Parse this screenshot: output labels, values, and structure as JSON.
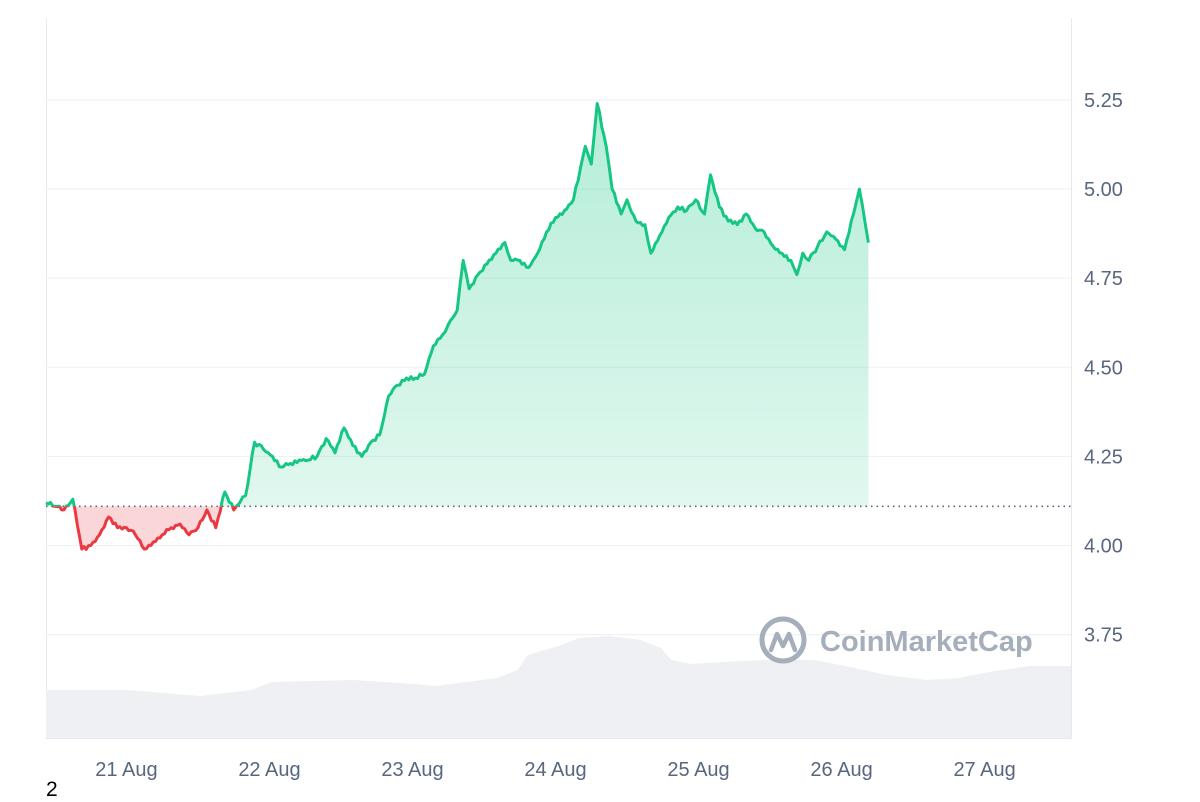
{
  "chart_data": {
    "type": "line",
    "title": "",
    "xlabel": "",
    "ylabel": "",
    "ylim": [
      3.46,
      5.48
    ],
    "y_ticks": [
      "3.75",
      "4.00",
      "4.25",
      "4.50",
      "4.75",
      "5.00",
      "5.25"
    ],
    "x_range": [
      "2024-08-20 10:30",
      "2024-08-27 14:30"
    ],
    "x_ticks": [
      {
        "label": "21 Aug",
        "time": "2024-08-21 00:00"
      },
      {
        "label": "22 Aug",
        "time": "2024-08-22 00:00"
      },
      {
        "label": "23 Aug",
        "time": "2024-08-23 00:00"
      },
      {
        "label": "24 Aug",
        "time": "2024-08-24 00:00"
      },
      {
        "label": "25 Aug",
        "time": "2024-08-25 00:00"
      },
      {
        "label": "26 Aug",
        "time": "2024-08-26 00:00"
      },
      {
        "label": "27 Aug",
        "time": "2024-08-27 00:00"
      }
    ],
    "baseline": 4.11,
    "grid": true,
    "colors": {
      "up": "#16c784",
      "down": "#ea3943",
      "grid": "#eff2f5",
      "volume": "#eef0f3",
      "baseline": "#58667e"
    },
    "series": [
      {
        "points": [
          [
            "2024-08-20 10:30",
            4.12
          ],
          [
            "2024-08-20 12:00",
            4.11
          ],
          [
            "2024-08-20 13:30",
            4.1
          ],
          [
            "2024-08-20 15:00",
            4.13
          ],
          [
            "2024-08-20 16:30",
            3.99
          ],
          [
            "2024-08-20 18:00",
            4.0
          ],
          [
            "2024-08-20 19:30",
            4.03
          ],
          [
            "2024-08-20 21:00",
            4.08
          ],
          [
            "2024-08-20 22:30",
            4.05
          ],
          [
            "2024-08-21 00:00",
            4.05
          ],
          [
            "2024-08-21 01:30",
            4.03
          ],
          [
            "2024-08-21 03:00",
            3.99
          ],
          [
            "2024-08-21 04:30",
            4.01
          ],
          [
            "2024-08-21 06:00",
            4.03
          ],
          [
            "2024-08-21 07:30",
            4.05
          ],
          [
            "2024-08-21 09:00",
            4.06
          ],
          [
            "2024-08-21 10:30",
            4.03
          ],
          [
            "2024-08-21 12:00",
            4.05
          ],
          [
            "2024-08-21 13:30",
            4.1
          ],
          [
            "2024-08-21 15:00",
            4.05
          ],
          [
            "2024-08-21 16:30",
            4.15
          ],
          [
            "2024-08-21 18:00",
            4.1
          ],
          [
            "2024-08-21 19:00",
            4.12
          ],
          [
            "2024-08-21 20:00",
            4.14
          ],
          [
            "2024-08-21 21:30",
            4.29
          ],
          [
            "2024-08-21 23:00",
            4.27
          ],
          [
            "2024-08-22 00:30",
            4.25
          ],
          [
            "2024-08-22 02:00",
            4.22
          ],
          [
            "2024-08-22 03:30",
            4.23
          ],
          [
            "2024-08-22 05:00",
            4.24
          ],
          [
            "2024-08-22 06:30",
            4.24
          ],
          [
            "2024-08-22 08:00",
            4.25
          ],
          [
            "2024-08-22 09:30",
            4.3
          ],
          [
            "2024-08-22 11:00",
            4.26
          ],
          [
            "2024-08-22 12:30",
            4.33
          ],
          [
            "2024-08-22 14:00",
            4.28
          ],
          [
            "2024-08-22 15:30",
            4.25
          ],
          [
            "2024-08-22 17:00",
            4.29
          ],
          [
            "2024-08-22 18:30",
            4.31
          ],
          [
            "2024-08-22 20:00",
            4.42
          ],
          [
            "2024-08-22 21:30",
            4.45
          ],
          [
            "2024-08-22 23:00",
            4.47
          ],
          [
            "2024-08-23 00:30",
            4.47
          ],
          [
            "2024-08-23 02:00",
            4.48
          ],
          [
            "2024-08-23 03:30",
            4.56
          ],
          [
            "2024-08-23 05:00",
            4.59
          ],
          [
            "2024-08-23 06:00",
            4.62
          ],
          [
            "2024-08-23 07:30",
            4.66
          ],
          [
            "2024-08-23 08:30",
            4.8
          ],
          [
            "2024-08-23 09:30",
            4.72
          ],
          [
            "2024-08-23 11:00",
            4.76
          ],
          [
            "2024-08-23 12:30",
            4.79
          ],
          [
            "2024-08-23 14:00",
            4.82
          ],
          [
            "2024-08-23 15:30",
            4.85
          ],
          [
            "2024-08-23 16:30",
            4.8
          ],
          [
            "2024-08-23 18:00",
            4.8
          ],
          [
            "2024-08-23 19:30",
            4.78
          ],
          [
            "2024-08-23 21:00",
            4.82
          ],
          [
            "2024-08-23 22:30",
            4.88
          ],
          [
            "2024-08-24 00:00",
            4.92
          ],
          [
            "2024-08-24 01:30",
            4.94
          ],
          [
            "2024-08-24 03:00",
            4.97
          ],
          [
            "2024-08-24 05:00",
            5.12
          ],
          [
            "2024-08-24 06:00",
            5.07
          ],
          [
            "2024-08-24 07:00",
            5.24
          ],
          [
            "2024-08-24 08:30",
            5.12
          ],
          [
            "2024-08-24 09:30",
            5.0
          ],
          [
            "2024-08-24 11:00",
            4.93
          ],
          [
            "2024-08-24 12:00",
            4.97
          ],
          [
            "2024-08-24 13:30",
            4.91
          ],
          [
            "2024-08-24 15:00",
            4.9
          ],
          [
            "2024-08-24 16:00",
            4.82
          ],
          [
            "2024-08-24 17:30",
            4.87
          ],
          [
            "2024-08-24 19:00",
            4.92
          ],
          [
            "2024-08-24 20:30",
            4.95
          ],
          [
            "2024-08-24 22:00",
            4.94
          ],
          [
            "2024-08-24 23:30",
            4.97
          ],
          [
            "2024-08-25 01:00",
            4.93
          ],
          [
            "2024-08-25 02:00",
            5.04
          ],
          [
            "2024-08-25 03:30",
            4.95
          ],
          [
            "2024-08-25 05:00",
            4.91
          ],
          [
            "2024-08-25 06:30",
            4.9
          ],
          [
            "2024-08-25 08:00",
            4.93
          ],
          [
            "2024-08-25 09:30",
            4.89
          ],
          [
            "2024-08-25 11:00",
            4.88
          ],
          [
            "2024-08-25 12:30",
            4.84
          ],
          [
            "2024-08-25 14:00",
            4.82
          ],
          [
            "2024-08-25 15:30",
            4.8
          ],
          [
            "2024-08-25 16:30",
            4.76
          ],
          [
            "2024-08-25 17:30",
            4.82
          ],
          [
            "2024-08-25 18:30",
            4.8
          ],
          [
            "2024-08-25 20:00",
            4.84
          ],
          [
            "2024-08-25 21:30",
            4.88
          ],
          [
            "2024-08-25 23:00",
            4.86
          ],
          [
            "2024-08-26 00:30",
            4.83
          ],
          [
            "2024-08-26 02:00",
            4.93
          ],
          [
            "2024-08-26 03:00",
            5.0
          ],
          [
            "2024-08-26 04:00",
            4.9
          ],
          [
            "2024-08-26 04:30",
            4.85
          ]
        ]
      }
    ]
  },
  "watermark": {
    "brand": "CoinMarketCap"
  },
  "page_number": "2"
}
